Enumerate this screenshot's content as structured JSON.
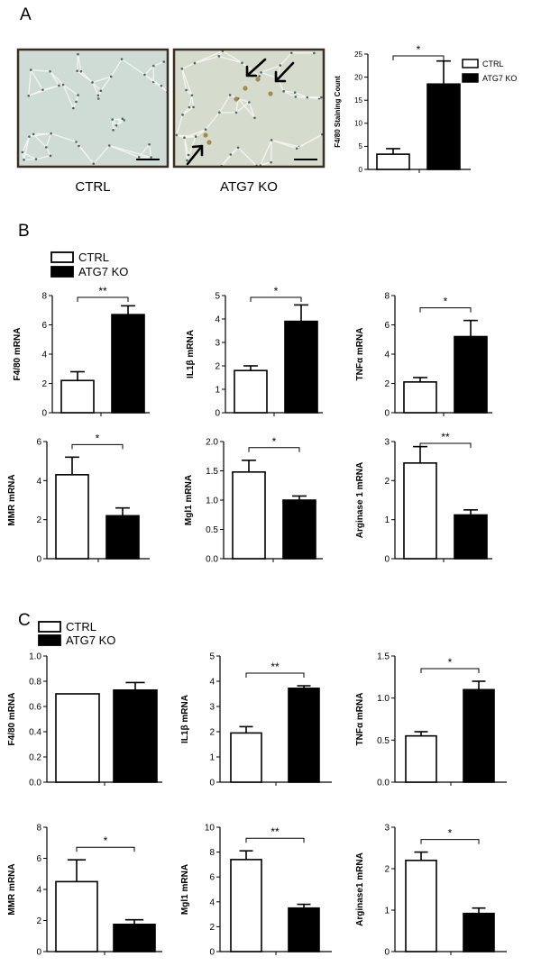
{
  "panels": {
    "a": "A",
    "b": "B",
    "c": "C"
  },
  "micrographs": {
    "ctrl_label": "CTRL",
    "ko_label": "ATG7 KO"
  },
  "legend": {
    "ctrl": "CTRL",
    "ko": "ATG7 KO"
  },
  "colors": {
    "ctrl_fill": "#ffffff",
    "ko_fill": "#000000",
    "axis": "#000000",
    "tissue_bg": "#cfdcd6",
    "cell_wall": "#f4f6f2",
    "stain": "#9c7a3c"
  },
  "chart_data": [
    {
      "id": "A",
      "type": "bar",
      "ylabel": "F4/80 Staining Count",
      "ylim": [
        0,
        25
      ],
      "yticks": [
        "0",
        "5",
        "10",
        "15",
        "20",
        "25"
      ],
      "categories": [
        "CTRL",
        "ATG7 KO"
      ],
      "values": [
        3.3,
        18.5
      ],
      "errors": [
        1.2,
        5.0
      ],
      "sig": "*"
    },
    {
      "id": "B1",
      "type": "bar",
      "ylabel": "F4/80 mRNA",
      "ylim": [
        0,
        8
      ],
      "yticks": [
        "0",
        "2",
        "4",
        "6",
        "8"
      ],
      "categories": [
        "CTRL",
        "ATG7 KO"
      ],
      "values": [
        2.2,
        6.7
      ],
      "errors": [
        0.6,
        0.6
      ],
      "sig": "**"
    },
    {
      "id": "B2",
      "type": "bar",
      "ylabel": "IL1β mRNA",
      "ylim": [
        0,
        5
      ],
      "yticks": [
        "0",
        "1",
        "2",
        "3",
        "4",
        "5"
      ],
      "categories": [
        "CTRL",
        "ATG7 KO"
      ],
      "values": [
        1.8,
        3.9
      ],
      "errors": [
        0.2,
        0.7
      ],
      "sig": "*"
    },
    {
      "id": "B3",
      "type": "bar",
      "ylabel": "TNFα mRNA",
      "ylim": [
        0,
        8
      ],
      "yticks": [
        "0",
        "2",
        "4",
        "6",
        "8"
      ],
      "categories": [
        "CTRL",
        "ATG7 KO"
      ],
      "values": [
        2.1,
        5.2
      ],
      "errors": [
        0.3,
        1.1
      ],
      "sig": "*"
    },
    {
      "id": "B4",
      "type": "bar",
      "ylabel": "MMR mRNA",
      "ylim": [
        0,
        6
      ],
      "yticks": [
        "0",
        "2",
        "4",
        "6"
      ],
      "categories": [
        "CTRL",
        "ATG7 KO"
      ],
      "values": [
        4.3,
        2.2
      ],
      "errors": [
        0.9,
        0.4
      ],
      "sig": "*"
    },
    {
      "id": "B5",
      "type": "bar",
      "ylabel": "Mgl1 mRNA",
      "ylim": [
        0,
        2.0
      ],
      "yticks": [
        "0.0",
        "0.5",
        "1.0",
        "1.5",
        "2.0"
      ],
      "categories": [
        "CTRL",
        "ATG7 KO"
      ],
      "values": [
        1.48,
        1.0
      ],
      "errors": [
        0.2,
        0.07
      ],
      "sig": "*"
    },
    {
      "id": "B6",
      "type": "bar",
      "ylabel": "Arginase 1 mRNA",
      "ylim": [
        0,
        3
      ],
      "yticks": [
        "0",
        "1",
        "2",
        "3"
      ],
      "categories": [
        "CTRL",
        "ATG7 KO"
      ],
      "values": [
        2.45,
        1.12
      ],
      "errors": [
        0.42,
        0.13
      ],
      "sig": "**"
    },
    {
      "id": "C1",
      "type": "bar",
      "ylabel": "F4/80 mRNA",
      "ylim": [
        0,
        1.0
      ],
      "yticks": [
        "0.0",
        "0.2",
        "0.4",
        "0.6",
        "0.8",
        "1.0"
      ],
      "categories": [
        "CTRL",
        "ATG7 KO"
      ],
      "values": [
        0.7,
        0.73
      ],
      "errors": [
        0.0,
        0.06
      ],
      "sig": ""
    },
    {
      "id": "C2",
      "type": "bar",
      "ylabel": "IL1β mRNA",
      "ylim": [
        0,
        5
      ],
      "yticks": [
        "0",
        "1",
        "2",
        "3",
        "4",
        "5"
      ],
      "categories": [
        "CTRL",
        "ATG7 KO"
      ],
      "values": [
        1.95,
        3.72
      ],
      "errors": [
        0.25,
        0.1
      ],
      "sig": "**"
    },
    {
      "id": "C3",
      "type": "bar",
      "ylabel": "TNFα mRNA",
      "ylim": [
        0,
        1.5
      ],
      "yticks": [
        "0.0",
        "0.5",
        "1.0",
        "1.5"
      ],
      "categories": [
        "CTRL",
        "ATG7 KO"
      ],
      "values": [
        0.55,
        1.1
      ],
      "errors": [
        0.05,
        0.1
      ],
      "sig": "*"
    },
    {
      "id": "C4",
      "type": "bar",
      "ylabel": "MMR mRNA",
      "ylim": [
        0,
        8
      ],
      "yticks": [
        "0",
        "2",
        "4",
        "6",
        "8"
      ],
      "categories": [
        "CTRL",
        "ATG7 KO"
      ],
      "values": [
        4.5,
        1.75
      ],
      "errors": [
        1.4,
        0.3
      ],
      "sig": "*"
    },
    {
      "id": "C5",
      "type": "bar",
      "ylabel": "Mgl1 mRNA",
      "ylim": [
        0,
        10
      ],
      "yticks": [
        "0",
        "2",
        "4",
        "6",
        "8",
        "10"
      ],
      "categories": [
        "CTRL",
        "ATG7 KO"
      ],
      "values": [
        7.4,
        3.5
      ],
      "errors": [
        0.7,
        0.3
      ],
      "sig": "**"
    },
    {
      "id": "C6",
      "type": "bar",
      "ylabel": "Arginase1 mRNA",
      "ylim": [
        0,
        3
      ],
      "yticks": [
        "0",
        "1",
        "2",
        "3"
      ],
      "categories": [
        "CTRL",
        "ATG7 KO"
      ],
      "values": [
        2.2,
        0.92
      ],
      "errors": [
        0.2,
        0.13
      ],
      "sig": "*"
    }
  ]
}
